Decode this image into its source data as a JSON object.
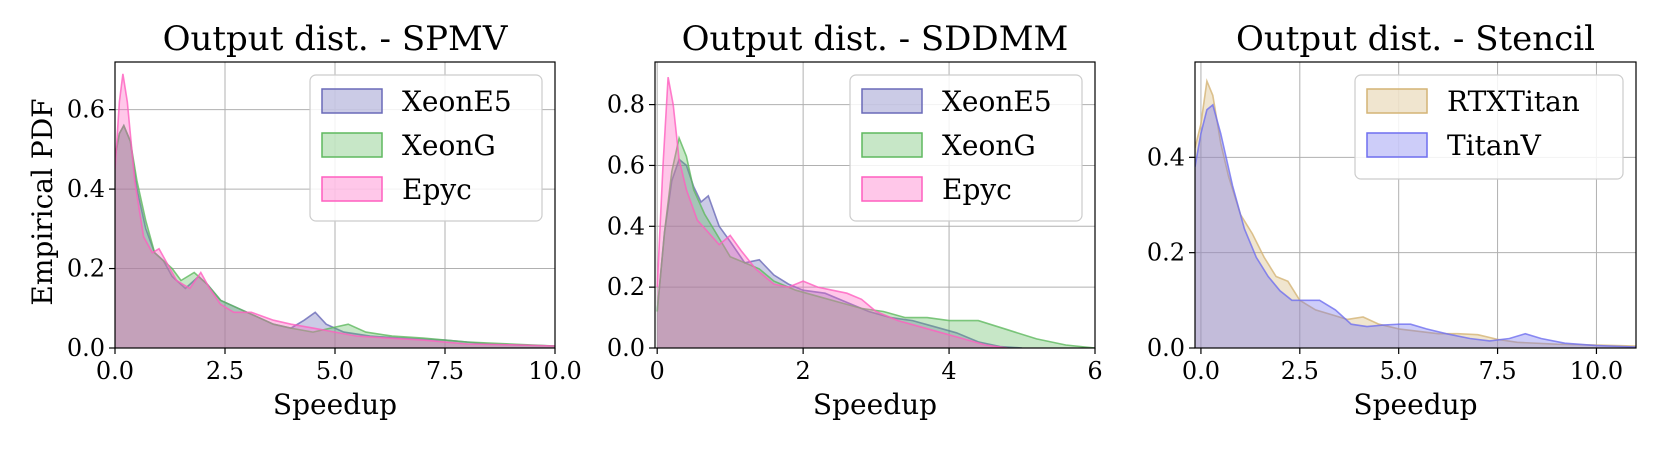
{
  "figure": {
    "ylabel": "Empirical PDF"
  },
  "chart_data": [
    {
      "type": "area",
      "title": "Output dist. - SPMV",
      "xlabel": "Speedup",
      "ylabel": "Empirical PDF",
      "xlim": [
        0,
        10
      ],
      "ylim": [
        0,
        0.72
      ],
      "xticks": [
        "0.0",
        "2.5",
        "5.0",
        "7.5",
        "10.0"
      ],
      "yticks": [
        "0.0",
        "0.2",
        "0.4",
        "0.6"
      ],
      "grid": true,
      "legend_position": "top-right",
      "series": [
        {
          "name": "XeonE5",
          "color": "#6a6ab8",
          "points": [
            [
              0,
              0.48
            ],
            [
              0.1,
              0.54
            ],
            [
              0.2,
              0.56
            ],
            [
              0.35,
              0.52
            ],
            [
              0.5,
              0.4
            ],
            [
              0.7,
              0.3
            ],
            [
              0.9,
              0.24
            ],
            [
              1.1,
              0.22
            ],
            [
              1.3,
              0.18
            ],
            [
              1.6,
              0.15
            ],
            [
              1.9,
              0.18
            ],
            [
              2.1,
              0.16
            ],
            [
              2.4,
              0.12
            ],
            [
              2.8,
              0.1
            ],
            [
              3.2,
              0.08
            ],
            [
              3.6,
              0.06
            ],
            [
              4.0,
              0.05
            ],
            [
              4.3,
              0.07
            ],
            [
              4.55,
              0.09
            ],
            [
              4.8,
              0.06
            ],
            [
              5.2,
              0.04
            ],
            [
              5.8,
              0.03
            ],
            [
              6.5,
              0.025
            ],
            [
              7.5,
              0.02
            ],
            [
              8.5,
              0.01
            ],
            [
              10,
              0.005
            ]
          ]
        },
        {
          "name": "XeonG",
          "color": "#5fb95f",
          "points": [
            [
              0,
              0.48
            ],
            [
              0.1,
              0.54
            ],
            [
              0.2,
              0.56
            ],
            [
              0.35,
              0.52
            ],
            [
              0.5,
              0.42
            ],
            [
              0.7,
              0.32
            ],
            [
              0.9,
              0.24
            ],
            [
              1.1,
              0.22
            ],
            [
              1.3,
              0.2
            ],
            [
              1.5,
              0.17
            ],
            [
              1.8,
              0.19
            ],
            [
              2.1,
              0.16
            ],
            [
              2.4,
              0.12
            ],
            [
              2.8,
              0.1
            ],
            [
              3.2,
              0.08
            ],
            [
              3.6,
              0.06
            ],
            [
              4.0,
              0.05
            ],
            [
              4.5,
              0.04
            ],
            [
              4.9,
              0.05
            ],
            [
              5.3,
              0.06
            ],
            [
              5.7,
              0.04
            ],
            [
              6.3,
              0.03
            ],
            [
              7.0,
              0.025
            ],
            [
              8.0,
              0.015
            ],
            [
              9.0,
              0.01
            ],
            [
              10,
              0.005
            ]
          ]
        },
        {
          "name": "Epyc",
          "color": "#ff5fbf",
          "points": [
            [
              0,
              0.45
            ],
            [
              0.1,
              0.62
            ],
            [
              0.18,
              0.69
            ],
            [
              0.28,
              0.62
            ],
            [
              0.45,
              0.42
            ],
            [
              0.65,
              0.28
            ],
            [
              0.85,
              0.24
            ],
            [
              1.0,
              0.25
            ],
            [
              1.15,
              0.22
            ],
            [
              1.4,
              0.17
            ],
            [
              1.7,
              0.15
            ],
            [
              1.95,
              0.19
            ],
            [
              2.15,
              0.15
            ],
            [
              2.4,
              0.11
            ],
            [
              2.7,
              0.09
            ],
            [
              3.1,
              0.09
            ],
            [
              3.6,
              0.07
            ],
            [
              4.0,
              0.06
            ],
            [
              4.5,
              0.05
            ],
            [
              5.0,
              0.04
            ],
            [
              5.5,
              0.03
            ],
            [
              6.2,
              0.025
            ],
            [
              7.0,
              0.02
            ],
            [
              8.0,
              0.01
            ],
            [
              9.0,
              0.008
            ],
            [
              10,
              0.005
            ]
          ]
        }
      ]
    },
    {
      "type": "area",
      "title": "Output dist. - SDDMM",
      "xlabel": "Speedup",
      "xlim": [
        -0.03,
        6
      ],
      "ylim": [
        0,
        0.94
      ],
      "xticks": [
        "0",
        "2",
        "4",
        "6"
      ],
      "yticks": [
        "0.0",
        "0.2",
        "0.4",
        "0.6",
        "0.8"
      ],
      "grid": true,
      "legend_position": "top-right",
      "series": [
        {
          "name": "XeonE5",
          "color": "#6a6ab8",
          "points": [
            [
              0,
              0.12
            ],
            [
              0.1,
              0.38
            ],
            [
              0.2,
              0.55
            ],
            [
              0.3,
              0.62
            ],
            [
              0.4,
              0.6
            ],
            [
              0.5,
              0.53
            ],
            [
              0.6,
              0.48
            ],
            [
              0.7,
              0.5
            ],
            [
              0.85,
              0.4
            ],
            [
              1.0,
              0.35
            ],
            [
              1.2,
              0.28
            ],
            [
              1.4,
              0.29
            ],
            [
              1.6,
              0.24
            ],
            [
              1.8,
              0.21
            ],
            [
              2.0,
              0.19
            ],
            [
              2.3,
              0.18
            ],
            [
              2.6,
              0.15
            ],
            [
              2.9,
              0.12
            ],
            [
              3.2,
              0.1
            ],
            [
              3.5,
              0.09
            ],
            [
              3.8,
              0.07
            ],
            [
              4.1,
              0.05
            ],
            [
              4.4,
              0.02
            ],
            [
              4.7,
              0.005
            ],
            [
              5.0,
              0
            ]
          ]
        },
        {
          "name": "XeonG",
          "color": "#5fb95f",
          "points": [
            [
              0,
              0.12
            ],
            [
              0.1,
              0.38
            ],
            [
              0.2,
              0.58
            ],
            [
              0.3,
              0.69
            ],
            [
              0.4,
              0.63
            ],
            [
              0.5,
              0.52
            ],
            [
              0.65,
              0.44
            ],
            [
              0.8,
              0.38
            ],
            [
              1.0,
              0.3
            ],
            [
              1.2,
              0.28
            ],
            [
              1.4,
              0.26
            ],
            [
              1.6,
              0.22
            ],
            [
              1.9,
              0.19
            ],
            [
              2.2,
              0.17
            ],
            [
              2.5,
              0.15
            ],
            [
              2.8,
              0.13
            ],
            [
              3.1,
              0.12
            ],
            [
              3.4,
              0.1
            ],
            [
              3.7,
              0.1
            ],
            [
              4.0,
              0.09
            ],
            [
              4.4,
              0.09
            ],
            [
              4.8,
              0.06
            ],
            [
              5.2,
              0.03
            ],
            [
              5.6,
              0.01
            ],
            [
              6.0,
              0
            ]
          ]
        },
        {
          "name": "Epyc",
          "color": "#ff5fbf",
          "points": [
            [
              0,
              0.2
            ],
            [
              0.08,
              0.6
            ],
            [
              0.15,
              0.89
            ],
            [
              0.22,
              0.8
            ],
            [
              0.3,
              0.62
            ],
            [
              0.4,
              0.52
            ],
            [
              0.55,
              0.42
            ],
            [
              0.7,
              0.38
            ],
            [
              0.85,
              0.34
            ],
            [
              1.0,
              0.37
            ],
            [
              1.15,
              0.32
            ],
            [
              1.35,
              0.26
            ],
            [
              1.6,
              0.21
            ],
            [
              1.8,
              0.2
            ],
            [
              2.0,
              0.22
            ],
            [
              2.2,
              0.2
            ],
            [
              2.4,
              0.19
            ],
            [
              2.6,
              0.18
            ],
            [
              2.8,
              0.16
            ],
            [
              3.0,
              0.12
            ],
            [
              3.3,
              0.09
            ],
            [
              3.6,
              0.07
            ],
            [
              3.9,
              0.05
            ],
            [
              4.2,
              0.03
            ],
            [
              4.5,
              0.01
            ],
            [
              4.8,
              0
            ]
          ]
        }
      ]
    },
    {
      "type": "area",
      "title": "Output dist. - Stencil",
      "xlabel": "Speedup",
      "xlim": [
        -0.15,
        11
      ],
      "ylim": [
        0,
        0.6
      ],
      "xticks": [
        "0.0",
        "2.5",
        "5.0",
        "7.5",
        "10.0"
      ],
      "yticks": [
        "0.0",
        "0.2",
        "0.4"
      ],
      "grid": true,
      "legend_position": "top-right",
      "series": [
        {
          "name": "RTXTitan",
          "color": "#d4b475",
          "points": [
            [
              -0.15,
              0.42
            ],
            [
              0,
              0.47
            ],
            [
              0.15,
              0.56
            ],
            [
              0.3,
              0.53
            ],
            [
              0.5,
              0.43
            ],
            [
              0.7,
              0.36
            ],
            [
              1.0,
              0.28
            ],
            [
              1.3,
              0.24
            ],
            [
              1.6,
              0.19
            ],
            [
              1.9,
              0.15
            ],
            [
              2.2,
              0.14
            ],
            [
              2.5,
              0.1
            ],
            [
              2.9,
              0.08
            ],
            [
              3.3,
              0.07
            ],
            [
              3.7,
              0.06
            ],
            [
              4.1,
              0.065
            ],
            [
              4.5,
              0.05
            ],
            [
              5.0,
              0.04
            ],
            [
              5.5,
              0.035
            ],
            [
              6.0,
              0.03
            ],
            [
              6.5,
              0.03
            ],
            [
              7.0,
              0.028
            ],
            [
              7.5,
              0.018
            ],
            [
              8.0,
              0.012
            ],
            [
              9.0,
              0.008
            ],
            [
              10.0,
              0.006
            ],
            [
              11,
              0.004
            ]
          ]
        },
        {
          "name": "TitanV",
          "color": "#6f6fef",
          "points": [
            [
              -0.15,
              0.38
            ],
            [
              0,
              0.45
            ],
            [
              0.15,
              0.5
            ],
            [
              0.3,
              0.51
            ],
            [
              0.5,
              0.45
            ],
            [
              0.8,
              0.34
            ],
            [
              1.1,
              0.25
            ],
            [
              1.4,
              0.19
            ],
            [
              1.7,
              0.15
            ],
            [
              2.0,
              0.12
            ],
            [
              2.3,
              0.1
            ],
            [
              2.7,
              0.1
            ],
            [
              3.0,
              0.1
            ],
            [
              3.4,
              0.08
            ],
            [
              3.8,
              0.05
            ],
            [
              4.2,
              0.045
            ],
            [
              4.6,
              0.048
            ],
            [
              5.0,
              0.05
            ],
            [
              5.3,
              0.05
            ],
            [
              5.7,
              0.04
            ],
            [
              6.2,
              0.03
            ],
            [
              6.8,
              0.02
            ],
            [
              7.3,
              0.015
            ],
            [
              7.8,
              0.02
            ],
            [
              8.2,
              0.03
            ],
            [
              8.6,
              0.02
            ],
            [
              9.2,
              0.01
            ],
            [
              10.0,
              0.005
            ],
            [
              11,
              0.002
            ]
          ]
        }
      ]
    }
  ]
}
